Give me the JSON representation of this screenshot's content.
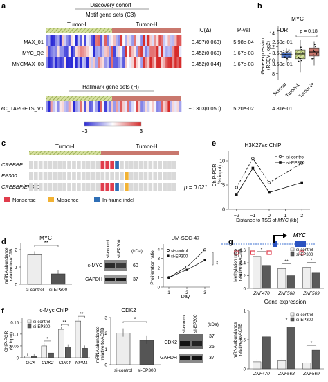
{
  "colors": {
    "tumor_l_fill": "#c9d98a",
    "tumor_h_fill": "#c9786e",
    "heat_low": "#2b2bd6",
    "heat_mid": "#ffffff",
    "heat_high": "#d62b2b",
    "nonsense": "#e03c4c",
    "missense": "#f2b233",
    "inframe": "#2f6fb6",
    "gray_cell": "#d9d9d9"
  },
  "panel_a": {
    "label": "a",
    "cohort": "Discovery cohort",
    "motif_title": "Motif gene sets (C3)",
    "hallmark_title": "Hallmark gene sets (H)",
    "tumor_l": "Tumor-L",
    "tumor_h": "Tumor-H",
    "headers": {
      "ic": "IC(Δ)",
      "pval": "P-val",
      "fdr": "FDR"
    },
    "motif_rows": [
      {
        "name": "MAX_01",
        "ic": "−0.497(0.063)",
        "pval": "5.98e-04",
        "fdr": "2.50e-01"
      },
      {
        "name": "MYC_Q2",
        "ic": "−0.452(0.060)",
        "pval": "1.67e-03",
        "fdr": "3.50e-01"
      },
      {
        "name": "MYCMAX_03",
        "ic": "−0.452(0.044)",
        "pval": "1.67e-03",
        "fdr": "3.50e-01"
      }
    ],
    "hallmark_rows": [
      {
        "name": "MYC_TARGETS_V1",
        "ic": "−0.303(0.050)",
        "pval": "5.20e-02",
        "fdr": "4.81e-01"
      }
    ],
    "scale_min": "−3",
    "scale_max": "3"
  },
  "panel_b": {
    "label": "b",
    "title": "MYC",
    "ylabel": "Gene expression\n(RSEM, log2)",
    "pvalue": "p = 0.18",
    "yticks": [
      "8",
      "10",
      "12",
      "14"
    ],
    "groups": [
      "Normal",
      "Tumor-L",
      "Tumor-H"
    ]
  },
  "panel_c": {
    "label": "c",
    "tumor_l": "Tumor-L",
    "tumor_h": "Tumor-H",
    "genes": [
      "CREBBP",
      "EP300",
      "CREBBP/EP300"
    ],
    "pvalue": "p = 0.021",
    "legend": [
      "Nonsense",
      "Missence",
      "In-frame indel"
    ]
  },
  "panel_d": {
    "label": "d",
    "bar_title": "MYC",
    "bar_ylabel": "mRNA abundance\nrelative to ACTB",
    "bar_yticks": [
      "0",
      "1",
      "2"
    ],
    "bar_sig": "**",
    "bar_categories": [
      "si-control",
      "si-EP300"
    ],
    "wb_lanes": [
      "si-control",
      "si-EP300"
    ],
    "wb_kda": "(kDa)",
    "wb_bands": [
      {
        "name": "c-MYC",
        "kda": "60"
      },
      {
        "name": "GAPDH",
        "kda": "37"
      }
    ],
    "prolif_title": "UM-SCC-47",
    "prolif_ylabel": "Proliferation ratio",
    "prolif_xlabel": "Day",
    "prolif_yticks": [
      "0",
      "1",
      "2",
      "3",
      "4"
    ],
    "prolif_xticks": [
      "1",
      "2",
      "3"
    ],
    "prolif_legend": [
      "si-control",
      "si-EP300"
    ],
    "prolif_sig": "**"
  },
  "panel_e": {
    "label": "e",
    "title": "H3K27ac ChIP",
    "ylabel": "ChIP-PCR\n(% input)",
    "xlabel_prefix": "Distance to TSS of ",
    "xlabel_gene": "MYC",
    "xlabel_suffix": " (kb)",
    "yticks": [
      "0",
      "5",
      "10"
    ],
    "xticks": [
      "−2",
      "−1",
      "0",
      "1",
      "2"
    ],
    "legend": [
      "si-control",
      "si-EP300"
    ],
    "gene": "MYC"
  },
  "panel_f": {
    "label": "f",
    "chip_title": "c-Myc ChIP",
    "chip_ylabel": "ChIP-PCR\n(% input)",
    "chip_yticks": [
      "0",
      "0.05",
      "0.1",
      "0.15"
    ],
    "chip_genes": [
      "GCK",
      "CDK2",
      "CDK4",
      "NPM1"
    ],
    "chip_legend": [
      "si-control",
      "si-EP300"
    ],
    "chip_sig": [
      "*",
      "**",
      "**"
    ],
    "cdk2_title": "CDK2",
    "cdk2_ylabel": "mRNA abundance\nrelative to ACTB",
    "cdk2_yticks": [
      "0",
      "1",
      "2",
      "3"
    ],
    "cdk2_sig": "*",
    "cdk2_categories": [
      "si-control",
      "si-EP300"
    ],
    "wb_lanes": [
      "si-control",
      "si-EP300"
    ],
    "wb_kda": "(kDa)",
    "wb_bands": [
      {
        "name": "CDK2",
        "kda": "37",
        "kda2": "25"
      },
      {
        "name": "GAPDH",
        "kda": "37"
      }
    ]
  },
  "panel_g": {
    "label": "g",
    "meth_ylabel": "Methylation ratio\nrelative to ACTB",
    "meth_yticks": [
      "0",
      "0.2",
      "0.4",
      "0.6"
    ],
    "meth_genes": [
      "ZNF470",
      "ZNF568",
      "ZNF569"
    ],
    "meth_legend": [
      "si-control",
      "si-EP300"
    ],
    "meth_sig": [
      "*",
      "**",
      "*"
    ],
    "expr_title": "Gene expression",
    "expr_ylabel": "mRNA abundance\nrelative to ACTB",
    "expr_yticks": [
      "0",
      "0.5",
      "1"
    ],
    "expr_genes": [
      "ZNF470",
      "ZNF568",
      "ZNF569"
    ],
    "expr_legend": [
      "si-control",
      "si-EP300"
    ],
    "expr_sig": [
      "*",
      "*"
    ]
  },
  "chart_data": [
    {
      "type": "line",
      "panel": "e",
      "title": "H3K27ac ChIP",
      "xlabel": "Distance to TSS of MYC (kb)",
      "ylabel": "ChIP-PCR (% input)",
      "x": [
        -2,
        -1,
        0,
        2
      ],
      "series": [
        {
          "name": "si-control",
          "values": [
            4.5,
            10.5,
            5.5,
            9.5
          ]
        },
        {
          "name": "si-EP300",
          "values": [
            3.0,
            8.5,
            3.5,
            5.5
          ]
        }
      ],
      "ylim": [
        0,
        12
      ],
      "xlim": [
        -2.5,
        2.5
      ]
    },
    {
      "type": "bar",
      "panel": "d",
      "title": "MYC",
      "categories": [
        "si-control",
        "si-EP300"
      ],
      "values": [
        1.7,
        0.6
      ],
      "ylim": [
        0,
        2.4
      ]
    },
    {
      "type": "line",
      "panel": "d",
      "title": "UM-SCC-47",
      "xlabel": "Day",
      "ylabel": "Proliferation ratio",
      "x": [
        1,
        2,
        3
      ],
      "series": [
        {
          "name": "si-control",
          "values": [
            1.0,
            2.1,
            3.9
          ]
        },
        {
          "name": "si-EP300",
          "values": [
            1.0,
            1.8,
            2.8
          ]
        }
      ],
      "ylim": [
        0,
        4.5
      ]
    },
    {
      "type": "bar",
      "panel": "f",
      "title": "c-Myc ChIP",
      "categories": [
        "GCK",
        "CDK2",
        "CDK4",
        "NPM1"
      ],
      "series": [
        {
          "name": "si-control",
          "values": [
            0.008,
            0.05,
            0.12,
            0.155
          ]
        },
        {
          "name": "si-EP300",
          "values": [
            0.006,
            0.02,
            0.045,
            0.04
          ]
        }
      ],
      "ylim": [
        0,
        0.17
      ]
    },
    {
      "type": "bar",
      "panel": "f",
      "title": "CDK2",
      "categories": [
        "si-control",
        "si-EP300"
      ],
      "values": [
        2.0,
        1.55
      ],
      "ylim": [
        0,
        3
      ]
    },
    {
      "type": "bar",
      "panel": "g",
      "categories": [
        "ZNF470",
        "ZNF568",
        "ZNF569"
      ],
      "series": [
        {
          "name": "si-control",
          "values": [
            0.5,
            0.31,
            0.33
          ]
        },
        {
          "name": "si-EP300",
          "values": [
            0.36,
            0.2,
            0.24
          ]
        }
      ],
      "ylim": [
        0,
        0.65
      ]
    },
    {
      "type": "bar",
      "panel": "g",
      "title": "Gene expression",
      "categories": [
        "ZNF470",
        "ZNF568",
        "ZNF569"
      ],
      "series": [
        {
          "name": "si-control",
          "values": [
            0.12,
            0.15,
            0.1
          ]
        },
        {
          "name": "si-EP300",
          "values": [
            0.55,
            0.72,
            0.32
          ]
        }
      ],
      "ylim": [
        0,
        1.0
      ]
    }
  ]
}
